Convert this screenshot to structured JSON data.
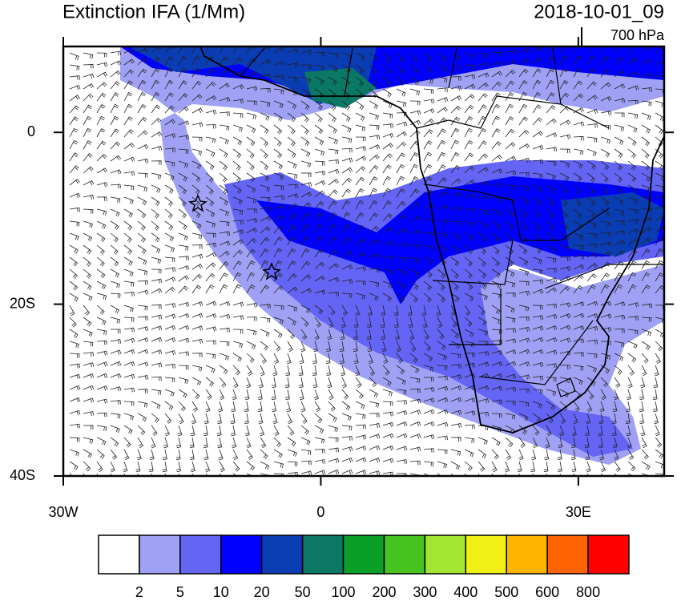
{
  "title": "Extinction IFA (1/Mm)",
  "timestamp": "2018-10-01_09",
  "level": "700 hPa",
  "lon_range": [
    -30,
    40
  ],
  "lat_range": [
    -40,
    10
  ],
  "lon_ticks": [
    {
      "value": -30,
      "label": "30W"
    },
    0,
    {
      "value": 30,
      "label": "30E"
    }
  ],
  "lat_ticks": [
    0,
    {
      "value": -20,
      "label": "20S"
    },
    {
      "value": -40,
      "label": "40S"
    }
  ],
  "colorbar": {
    "colors": [
      "#ffffff",
      "#a0a0f5",
      "#6464f5",
      "#0000ff",
      "#0a3cb4",
      "#0a7864",
      "#0aa028",
      "#46c31e",
      "#a0e632",
      "#f0f014",
      "#ffb400",
      "#ff6400",
      "#ff0000"
    ],
    "labels": [
      "2",
      "5",
      "10",
      "20",
      "50",
      "100",
      "200",
      "300",
      "400",
      "500",
      "600",
      "800"
    ]
  }
}
